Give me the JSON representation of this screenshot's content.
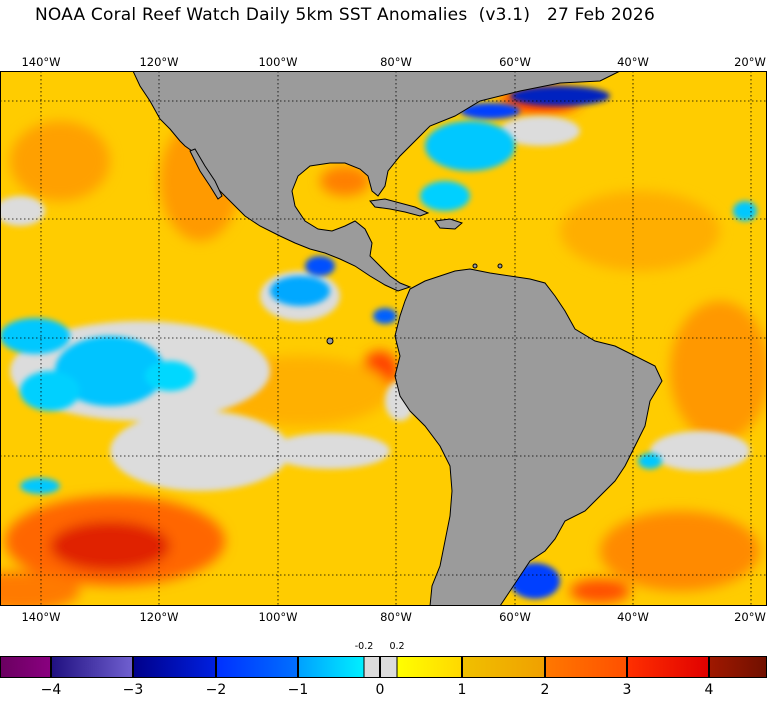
{
  "title": "NOAA Coral Reef Watch Daily 5km SST Anomalies  (v3.1)   27 Feb 2026",
  "longitude_labels": [
    "140°W",
    "120°W",
    "100°W",
    "80°W",
    "60°W",
    "40°W",
    "20°W"
  ],
  "colorbar": {
    "tick_labels": [
      "−4",
      "−3",
      "−2",
      "−1",
      "0",
      "1",
      "2",
      "3",
      "4"
    ],
    "small_labels": [
      "-0.2",
      "0.2"
    ],
    "segments": [
      {
        "colors": [
          "#6a0060",
          "#8a0080"
        ]
      },
      {
        "colors": [
          "#201080",
          "#7060d0"
        ]
      },
      {
        "colors": [
          "#00008a",
          "#0020e0"
        ]
      },
      {
        "colors": [
          "#0030ff",
          "#0070ff"
        ]
      },
      {
        "colors": [
          "#00a0ff",
          "#00f0ff"
        ]
      },
      {
        "colors": [
          "#dcdcdc",
          "#dcdcdc"
        ]
      },
      {
        "colors": [
          "#dcdcdc",
          "#dcdcdc"
        ]
      },
      {
        "colors": [
          "#ffff00",
          "#ffd800"
        ]
      },
      {
        "colors": [
          "#f0c000",
          "#f0a000"
        ]
      },
      {
        "colors": [
          "#ff7800",
          "#ff5000"
        ]
      },
      {
        "colors": [
          "#ff3000",
          "#e00000"
        ]
      },
      {
        "colors": [
          "#a01800",
          "#701000"
        ]
      }
    ]
  },
  "colors": {
    "land": "#9b9b9b",
    "ocean_base": "#ffcc00",
    "neutral": "#dcdcdc"
  }
}
